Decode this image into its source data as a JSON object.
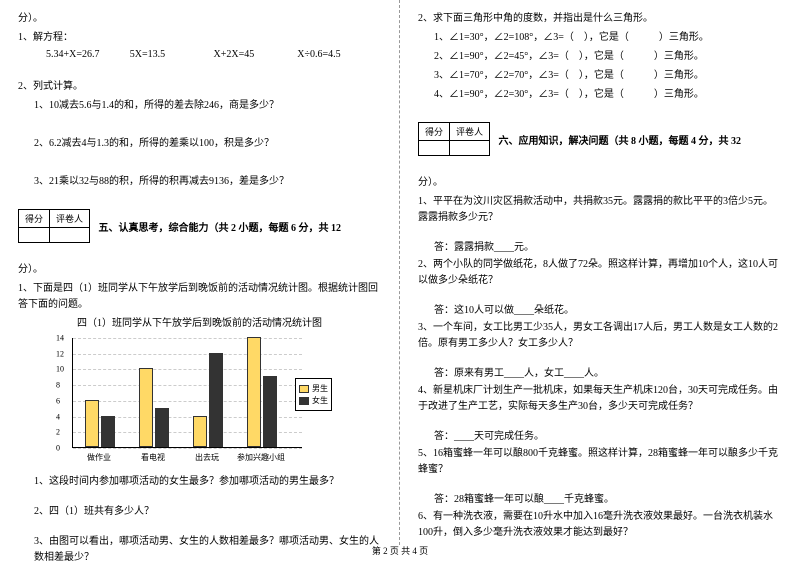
{
  "left": {
    "pts_label": "分）。",
    "q1_title": "1、解方程：",
    "eqs": [
      "5.34+X=26.7",
      "5X=13.5",
      "X+2X=45",
      "X÷0.6=4.5"
    ],
    "q2_title": "2、列式计算。",
    "q2_1": "1、10减去5.6与1.4的和，所得的差去除246，商是多少？",
    "q2_2": "2、6.2减去4与1.3的和，所得的差乘以100，积是多少？",
    "q2_3": "3、21乘以32与88的积，所得的积再减去9136，差是多少？",
    "score_l": "得分",
    "score_r": "评卷人",
    "sec5": "五、认真思考，综合能力（共 2 小题，每题 6 分，共 12",
    "pts2": "分）。",
    "p1": "1、下面是四（1）班同学从下午放学后到晚饭前的活动情况统计图。根据统计图回答下面的问题。",
    "chart_title": "四（1）班同学从下午放学后到晚饭前的活动情况统计图",
    "chart": {
      "yticks": [
        0,
        2,
        4,
        6,
        8,
        10,
        12,
        14
      ],
      "max": 14,
      "height": 110,
      "cats": [
        "做作业",
        "看电视",
        "出去玩",
        "参加兴趣小组"
      ],
      "male": [
        6,
        10,
        4,
        14
      ],
      "female": [
        4,
        5,
        12,
        9
      ],
      "colors": {
        "male": "#ffd966",
        "female": "#333333",
        "grid": "#cccccc"
      },
      "legend": {
        "male": "男生",
        "female": "女生"
      }
    },
    "sub1": "1、这段时间内参加哪项活动的女生最多？参加哪项活动的男生最多？",
    "sub2": "2、四（1）班共有多少人？",
    "sub3": "3、由图可以看出，哪项活动男、女生的人数相差最多？哪项活动男、女生的人数相差最少？"
  },
  "right": {
    "r2_title": "2、求下面三角形中角的度数，并指出是什么三角形。",
    "r2_1": "1、∠1=30°，∠2=108°，∠3=（　），它是（　　　）三角形。",
    "r2_2": "2、∠1=90°，∠2=45°，∠3=（　），它是（　　　）三角形。",
    "r2_3": "3、∠1=70°，∠2=70°，∠3=（　），它是（　　　）三角形。",
    "r2_4": "4、∠1=90°，∠2=30°，∠3=（　），它是（　　　）三角形。",
    "score_l": "得分",
    "score_r": "评卷人",
    "sec6": "六、应用知识，解决问题（共 8 小题，每题 4 分，共 32",
    "pts": "分）。",
    "q1": "1、平平在为汶川灾区捐款活动中，共捐款35元。露露捐的款比平平的3倍少5元。露露捐款多少元？",
    "a1": "答：露露捐款____元。",
    "q2": "2、两个小队的同学做纸花，8人做了72朵。照这样计算，再增加10个人，这10人可以做多少朵纸花？",
    "a2": "答：这10人可以做____朵纸花。",
    "q3": "3、一个车间，女工比男工少35人，男女工各调出17人后，男工人数是女工人数的2倍。原有男工多少人？女工多少人？",
    "a3": "答：原来有男工____人，女工____人。",
    "q4": "4、新星机床厂计划生产一批机床，如果每天生产机床120台，30天可完成任务。由于改进了生产工艺，实际每天多生产30台，多少天可完成任务？",
    "a4": "答：____天可完成任务。",
    "q5": "5、16箱蜜蜂一年可以酿800千克蜂蜜。照这样计算，28箱蜜蜂一年可以酿多少千克蜂蜜？",
    "a5": "答：28箱蜜蜂一年可以酿____千克蜂蜜。",
    "q6": "6、有一种洗衣液，需要在10升水中加入16毫升洗衣液效果最好。一台洗衣机装水100升，倒入多少毫升洗衣液效果才能达到最好？"
  },
  "footer": "第 2 页 共 4 页"
}
